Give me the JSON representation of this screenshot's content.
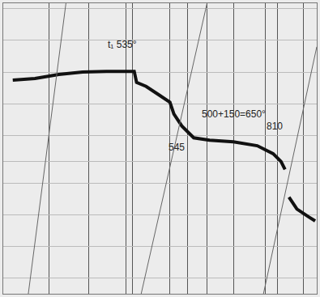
{
  "chart_data": {
    "type": "line",
    "x": [
      12,
      40,
      70,
      100,
      130,
      165,
      168,
      180,
      195,
      210,
      215,
      225,
      240,
      260,
      290,
      320,
      340,
      350,
      355,
      357,
      360,
      370,
      385,
      393
    ],
    "values": [
      270,
      272,
      277,
      280,
      281,
      281,
      267,
      262,
      252,
      242,
      227,
      212,
      197,
      194,
      192,
      187,
      177,
      167,
      157,
      null,
      122,
      107,
      97,
      92
    ],
    "color": "#111111",
    "xlim": [
      0,
      395
    ],
    "ylim": [
      0,
      367
    ],
    "xticks": [
      58,
      108,
      155,
      163,
      210,
      232,
      257,
      290,
      330,
      345,
      378
    ],
    "yticks": [
      20,
      60,
      100,
      140,
      167,
      200,
      240,
      280,
      320,
      360
    ],
    "grid": true,
    "tick_labels": false,
    "annotations": [
      {
        "text": "t₁ 535°",
        "x": 150,
        "y": 315
      },
      {
        "text": "545",
        "x": 218,
        "y": 185
      },
      {
        "text": "500+150=650°",
        "x": 290,
        "y": 227
      },
      {
        "text": "810",
        "x": 342,
        "y": 212
      }
    ]
  }
}
